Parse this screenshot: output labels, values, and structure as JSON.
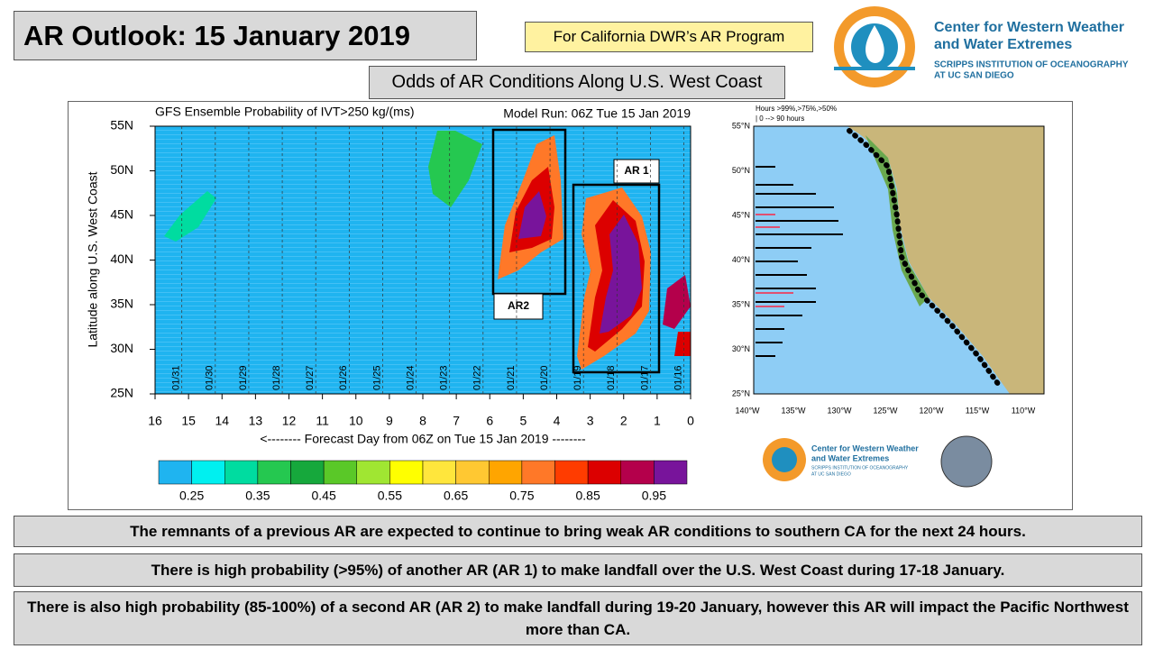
{
  "header": {
    "title": "AR Outlook: 15 January 2019",
    "badge": "For California DWR’s AR Program",
    "subtitle": "Odds of AR Conditions Along U.S. West Coast",
    "logo": [
      "Center for Western Weather",
      "and Water Extremes",
      "SCRIPPS INSTITUTION OF OCEANOGRAPHY",
      "AT UC SAN DIEGO"
    ]
  },
  "plot": {
    "title": "GFS Ensemble Probability of IVT>250 kg/(ms)",
    "model_run": "Model Run: 06Z Tue 15 Jan 2019",
    "y_label": "Latitude along U.S. West Coast",
    "x_label": "<-------- Forecast Day from 06Z on Tue 15 Jan 2019 --------",
    "y_ticks": [
      "55N",
      "50N",
      "45N",
      "40N",
      "35N",
      "30N",
      "25N"
    ],
    "x_ticks": [
      "16",
      "15",
      "14",
      "13",
      "12",
      "11",
      "10",
      "9",
      "8",
      "7",
      "6",
      "5",
      "4",
      "3",
      "2",
      "1",
      "0"
    ],
    "dates": [
      "01/31",
      "01/30",
      "01/29",
      "01/28",
      "01/27",
      "01/26",
      "01/25",
      "01/24",
      "01/23",
      "01/22",
      "01/21",
      "01/20",
      "01/19",
      "01/18",
      "01/17",
      "01/16"
    ],
    "ar1_label": "AR 1",
    "ar2_label": "AR2",
    "colorbar_colors": [
      "#1fb4f0",
      "#00f0f0",
      "#00dca0",
      "#25c850",
      "#16a83c",
      "#5ac828",
      "#a0e632",
      "#ffff00",
      "#ffe63c",
      "#ffc832",
      "#ffa500",
      "#ff7828",
      "#ff3c00",
      "#dc0000",
      "#b4004b",
      "#78149b"
    ],
    "colorbar_labels": [
      "0.25",
      "0.35",
      "0.45",
      "0.55",
      "0.65",
      "0.75",
      "0.85",
      "0.95"
    ]
  },
  "map": {
    "legend": [
      "Hours >99%,>75%,>50%",
      "| 0 --> 90 hours"
    ],
    "lat_ticks": [
      "55°N",
      "50°N",
      "45°N",
      "40°N",
      "35°N",
      "30°N",
      "25°N"
    ],
    "lon_ticks": [
      "140°W",
      "135°W",
      "130°W",
      "125°W",
      "120°W",
      "115°W",
      "110°W"
    ],
    "logo": [
      "Center for Western Weather",
      "and Water Extremes",
      "SCRIPPS INSTITUTION OF OCEANOGRAPHY",
      "AT UC SAN DIEGO"
    ]
  },
  "bullets": [
    "The remnants of a previous AR are expected to continue to bring weak AR conditions to southern CA for the next 24 hours.",
    "There is high probability (>95%) of another AR (AR 1) to make landfall over the U.S. West Coast during 17-18 January.",
    "There is also high probability (85-100%) of a second AR (AR 2) to make landfall during 19-20 January, however this AR will impact the Pacific Northwest more than CA."
  ]
}
